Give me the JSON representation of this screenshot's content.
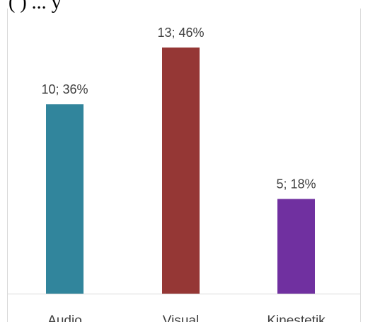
{
  "header_fragment": "(    ) ... y",
  "chart_data": {
    "type": "bar",
    "title": "",
    "xlabel": "",
    "ylabel": "",
    "categories": [
      "Audio",
      "Visual",
      "Kinestetik"
    ],
    "values": [
      10,
      13,
      5
    ],
    "data_labels": [
      "10; 36%",
      "13; 46%",
      "5; 18%"
    ],
    "colors": [
      "#31859C",
      "#953735",
      "#7030A0"
    ],
    "ylim": [
      0,
      13
    ],
    "grid": false,
    "legend": "none"
  }
}
